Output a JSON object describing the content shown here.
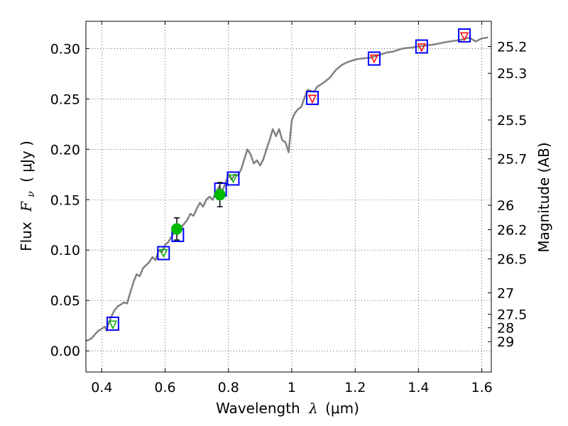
{
  "chart_data": {
    "type": "scatter",
    "xlabel": "Wavelength",
    "xlabel_symbol": "λ",
    "xlabel_unit": "(μm)",
    "ylabel": "Flux",
    "ylabel_symbol": "F",
    "ylabel_subscript": "ν",
    "ylabel_unit": "( μJy )",
    "y2label": "Magnitude (AB)",
    "xlim": [
      0.35,
      1.63
    ],
    "ylim": [
      -0.021,
      0.327
    ],
    "grid": true,
    "x_ticks": [
      {
        "v": 0.4,
        "label": "0.4"
      },
      {
        "v": 0.6,
        "label": "0.6"
      },
      {
        "v": 0.8,
        "label": "0.8"
      },
      {
        "v": 1.0,
        "label": "1"
      },
      {
        "v": 1.2,
        "label": "1.2"
      },
      {
        "v": 1.4,
        "label": "1.4"
      },
      {
        "v": 1.6,
        "label": "1.6"
      }
    ],
    "y_ticks": [
      {
        "v": 0.0,
        "label": "0.00"
      },
      {
        "v": 0.05,
        "label": "0.05"
      },
      {
        "v": 0.1,
        "label": "0.10"
      },
      {
        "v": 0.15,
        "label": "0.15"
      },
      {
        "v": 0.2,
        "label": "0.20"
      },
      {
        "v": 0.25,
        "label": "0.25"
      },
      {
        "v": 0.3,
        "label": "0.30"
      }
    ],
    "mag_ticks": [
      "25.2",
      "25.3",
      "25.5",
      "25.7",
      "26",
      "26.2",
      "26.5",
      "27",
      "27.5",
      "28",
      "29"
    ],
    "series": [
      {
        "kind": "model-spectrum",
        "color": "#808080",
        "x": [
          0.35,
          0.36,
          0.37,
          0.38,
          0.39,
          0.4,
          0.41,
          0.415,
          0.42,
          0.425,
          0.43,
          0.44,
          0.45,
          0.46,
          0.47,
          0.48,
          0.49,
          0.5,
          0.51,
          0.52,
          0.53,
          0.54,
          0.55,
          0.56,
          0.57,
          0.58,
          0.59,
          0.6,
          0.61,
          0.62,
          0.63,
          0.64,
          0.65,
          0.66,
          0.67,
          0.68,
          0.69,
          0.7,
          0.71,
          0.72,
          0.73,
          0.74,
          0.75,
          0.76,
          0.77,
          0.78,
          0.79,
          0.8,
          0.81,
          0.82,
          0.83,
          0.84,
          0.85,
          0.86,
          0.87,
          0.88,
          0.89,
          0.9,
          0.91,
          0.92,
          0.93,
          0.94,
          0.95,
          0.96,
          0.97,
          0.98,
          0.99,
          1.0,
          1.01,
          1.02,
          1.03,
          1.04,
          1.05,
          1.06,
          1.07,
          1.08,
          1.1,
          1.12,
          1.14,
          1.16,
          1.18,
          1.2,
          1.22,
          1.25,
          1.28,
          1.3,
          1.32,
          1.35,
          1.38,
          1.4,
          1.42,
          1.45,
          1.48,
          1.5,
          1.52,
          1.54,
          1.56,
          1.58,
          1.6,
          1.62
        ],
        "y": [
          0.01,
          0.011,
          0.013,
          0.017,
          0.02,
          0.022,
          0.024,
          0.02,
          0.026,
          0.03,
          0.034,
          0.04,
          0.044,
          0.046,
          0.048,
          0.047,
          0.058,
          0.068,
          0.076,
          0.074,
          0.082,
          0.085,
          0.088,
          0.093,
          0.09,
          0.1,
          0.098,
          0.105,
          0.108,
          0.113,
          0.118,
          0.116,
          0.122,
          0.126,
          0.13,
          0.136,
          0.134,
          0.141,
          0.147,
          0.143,
          0.15,
          0.153,
          0.15,
          0.157,
          0.163,
          0.158,
          0.166,
          0.175,
          0.17,
          0.175,
          0.174,
          0.18,
          0.19,
          0.2,
          0.195,
          0.186,
          0.189,
          0.184,
          0.19,
          0.2,
          0.209,
          0.22,
          0.213,
          0.22,
          0.209,
          0.207,
          0.197,
          0.229,
          0.236,
          0.24,
          0.242,
          0.251,
          0.259,
          0.258,
          0.257,
          0.262,
          0.266,
          0.271,
          0.279,
          0.284,
          0.287,
          0.289,
          0.29,
          0.291,
          0.294,
          0.296,
          0.297,
          0.3,
          0.301,
          0.302,
          0.303,
          0.304,
          0.306,
          0.307,
          0.308,
          0.309,
          0.311,
          0.307,
          0.31,
          0.311
        ]
      },
      {
        "kind": "model-photometry",
        "marker": "blue-square",
        "color": "#0000ff",
        "points": [
          {
            "x": 0.435,
            "y": 0.027
          },
          {
            "x": 0.595,
            "y": 0.097
          },
          {
            "x": 0.64,
            "y": 0.115
          },
          {
            "x": 0.775,
            "y": 0.16
          },
          {
            "x": 0.815,
            "y": 0.171
          },
          {
            "x": 1.065,
            "y": 0.251
          },
          {
            "x": 1.26,
            "y": 0.29
          },
          {
            "x": 1.41,
            "y": 0.302
          },
          {
            "x": 1.545,
            "y": 0.313
          }
        ]
      },
      {
        "kind": "observed-upper-limit",
        "marker": "green-triangle",
        "color": "#00aa00",
        "points": [
          {
            "x": 0.435,
            "y": 0.026
          },
          {
            "x": 0.595,
            "y": 0.097
          },
          {
            "x": 0.815,
            "y": 0.171
          }
        ]
      },
      {
        "kind": "observed-upper-limit",
        "marker": "red-triangle",
        "color": "#ff0000",
        "points": [
          {
            "x": 1.065,
            "y": 0.25
          },
          {
            "x": 1.26,
            "y": 0.29
          },
          {
            "x": 1.41,
            "y": 0.301
          },
          {
            "x": 1.545,
            "y": 0.312
          }
        ]
      },
      {
        "kind": "observed-detection",
        "marker": "green-circle",
        "color": "#00bb00",
        "points": [
          {
            "x": 0.637,
            "y": 0.121,
            "err": 0.011
          },
          {
            "x": 0.773,
            "y": 0.155,
            "err": 0.012
          }
        ]
      }
    ]
  }
}
